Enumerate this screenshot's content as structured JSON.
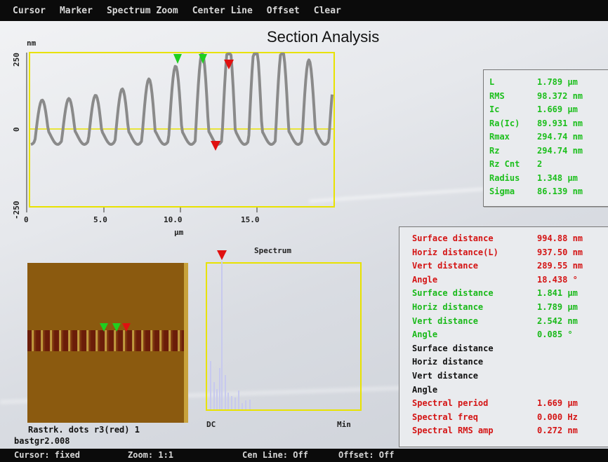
{
  "menu": [
    "Cursor",
    "Marker",
    "Spectrum Zoom",
    "Center Line",
    "Offset",
    "Clear"
  ],
  "title": "Section Analysis",
  "profile": {
    "y_unit": "nm",
    "y_ticks": [
      "250",
      "0",
      "-250"
    ],
    "x_ticks": [
      "0",
      "5.0",
      "10.0",
      "15.0"
    ],
    "x_unit": "µm",
    "colors": {
      "frame": "#e8e200",
      "center_line": "#e8e200",
      "trace": "#8a8a8a"
    }
  },
  "spectrum": {
    "title": "Spectrum",
    "x_left": "DC",
    "x_right": "Min",
    "colors": {
      "frame": "#e8e200",
      "bars": "#c7c9ee",
      "marker": "#e01010"
    }
  },
  "image": {
    "caption": "Rastrk. dots r3(red) 1",
    "filename": "bastgr2.008"
  },
  "stats_box": [
    {
      "label": "L",
      "value": "1.789 µm"
    },
    {
      "label": "RMS",
      "value": "98.372 nm"
    },
    {
      "label": "Ic",
      "value": "1.669 µm"
    },
    {
      "label": "Ra(Ic)",
      "value": "89.931 nm"
    },
    {
      "label": "Rmax",
      "value": "294.74 nm"
    },
    {
      "label": "Rz",
      "value": "294.74 nm"
    },
    {
      "label": "Rz Cnt",
      "value": "2"
    },
    {
      "label": "Radius",
      "value": "1.348 µm"
    },
    {
      "label": "Sigma",
      "value": "86.139 nm"
    }
  ],
  "measurements": [
    {
      "label": "Surface distance",
      "value": "994.88 nm",
      "color": "red"
    },
    {
      "label": "Horiz distance(L)",
      "value": "937.50 nm",
      "color": "red"
    },
    {
      "label": "Vert distance",
      "value": "289.55 nm",
      "color": "red"
    },
    {
      "label": "Angle",
      "value": "18.438 °",
      "color": "red"
    },
    {
      "label": "Surface distance",
      "value": "1.841 µm",
      "color": "green"
    },
    {
      "label": "Horiz distance",
      "value": "1.789 µm",
      "color": "green"
    },
    {
      "label": "Vert distance",
      "value": "2.542 nm",
      "color": "green"
    },
    {
      "label": "Angle",
      "value": "0.085 °",
      "color": "green"
    },
    {
      "label": "Surface distance",
      "value": "",
      "color": "black"
    },
    {
      "label": "Horiz distance",
      "value": "",
      "color": "black"
    },
    {
      "label": "Vert distance",
      "value": "",
      "color": "black"
    },
    {
      "label": "Angle",
      "value": "",
      "color": "black"
    },
    {
      "label": "Spectral period",
      "value": "1.669 µm",
      "color": "red"
    },
    {
      "label": "Spectral freq",
      "value": "0.000 Hz",
      "color": "red"
    },
    {
      "label": "Spectral RMS amp",
      "value": "0.272 nm",
      "color": "red"
    }
  ],
  "status": {
    "cursor": "Cursor: fixed",
    "zoom": "Zoom: 1:1",
    "cen_line": "Cen Line: Off",
    "offset": "Offset: Off"
  }
}
